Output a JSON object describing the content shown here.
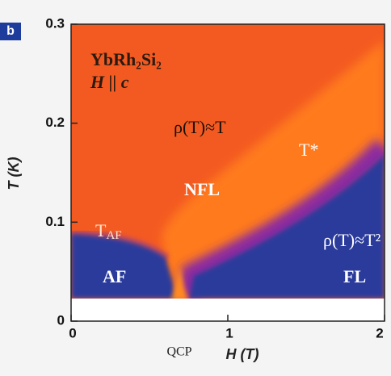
{
  "chart_data": {
    "type": "phase-diagram",
    "panel": "b",
    "xlabel": "H (T)",
    "ylabel": "T (K)",
    "xnote": "QCP",
    "xlim": [
      0,
      2
    ],
    "ylim": [
      0,
      0.3
    ],
    "xticks": [
      0,
      1,
      2
    ],
    "yticks": [
      0,
      0.1,
      0.2,
      0.3
    ],
    "annotations": [
      {
        "text": "YbRh₂Si₂",
        "color": "#2a1a10"
      },
      {
        "text": "H || c",
        "color": "#2a1a10"
      },
      {
        "text": "ρ(T)≈T",
        "color": "#1a0f08"
      },
      {
        "text": "T*",
        "color": "#ffffff"
      },
      {
        "text": "NFL",
        "color": "#ffffff"
      },
      {
        "text": "T",
        "sub": "AF",
        "color": "#ffe8d0"
      },
      {
        "text": "ρ(T)≈T²",
        "color": "#ffffff"
      },
      {
        "text": "AF",
        "color": "#ffffff"
      },
      {
        "text": "FL",
        "color": "#ffffff"
      }
    ]
  }
}
